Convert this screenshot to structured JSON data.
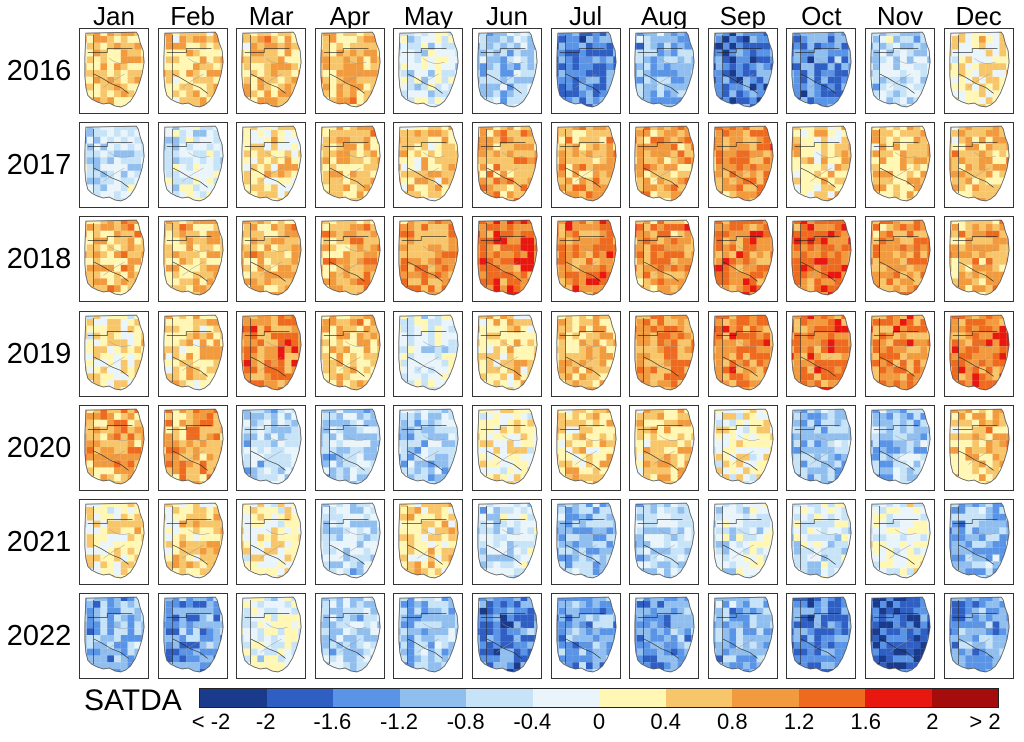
{
  "months": [
    "Jan",
    "Feb",
    "Mar",
    "Apr",
    "May",
    "Jun",
    "Jul",
    "Aug",
    "Sep",
    "Oct",
    "Nov",
    "Dec"
  ],
  "years": [
    "2016",
    "2017",
    "2018",
    "2019",
    "2020",
    "2021",
    "2022"
  ],
  "colorbar": {
    "title": "SATDA",
    "colors": [
      "#1a3a8c",
      "#2f5fc2",
      "#5a94e6",
      "#8fbeef",
      "#c7e3f7",
      "#eaf5fb",
      "#fff7b3",
      "#f7c66a",
      "#f29a3e",
      "#ee6a1f",
      "#e8170f",
      "#a50d0d"
    ],
    "tick_labels": [
      "< -2",
      "-2",
      "-1.6",
      "-1.2",
      "-0.8",
      "-0.4",
      "0",
      "0.4",
      "0.8",
      "1.2",
      "1.6",
      "2",
      "> 2"
    ]
  },
  "chart_data": {
    "type": "heatmap",
    "title": "SATDA",
    "xlabel": "",
    "ylabel": "",
    "categories": [
      "Jan",
      "Feb",
      "Mar",
      "Apr",
      "May",
      "Jun",
      "Jul",
      "Aug",
      "Sep",
      "Oct",
      "Nov",
      "Dec"
    ],
    "series": [
      {
        "name": "2016",
        "values": [
          0.6,
          0.5,
          0.6,
          0.7,
          -0.3,
          -0.8,
          -1.4,
          -1.0,
          -1.6,
          -1.4,
          -0.6,
          0.2
        ]
      },
      {
        "name": "2017",
        "values": [
          -0.5,
          -0.4,
          0.3,
          0.6,
          0.5,
          0.8,
          0.8,
          0.8,
          1.0,
          0.4,
          0.6,
          0.7
        ]
      },
      {
        "name": "2018",
        "values": [
          0.7,
          0.6,
          0.7,
          0.8,
          1.0,
          1.3,
          1.1,
          1.0,
          1.2,
          1.3,
          1.0,
          0.8
        ]
      },
      {
        "name": "2019",
        "values": [
          0.2,
          0.5,
          1.1,
          0.6,
          -0.3,
          0.4,
          0.6,
          1.0,
          1.1,
          1.2,
          1.1,
          1.2
        ]
      },
      {
        "name": "2020",
        "values": [
          0.8,
          0.9,
          -0.6,
          -0.7,
          -0.8,
          0.1,
          0.4,
          0.5,
          0.1,
          -0.9,
          -0.8,
          0.6
        ]
      },
      {
        "name": "2021",
        "values": [
          0.2,
          0.4,
          0.1,
          -0.6,
          0.4,
          -0.5,
          -0.9,
          -0.6,
          -0.3,
          -0.4,
          -0.1,
          -1.0
        ]
      },
      {
        "name": "2022",
        "values": [
          -1.0,
          -1.2,
          -0.2,
          -0.7,
          -0.9,
          -1.5,
          -1.1,
          -1.2,
          -1.0,
          -1.5,
          -1.8,
          -1.2
        ]
      }
    ],
    "value_range": [
      -2,
      2
    ],
    "legend": "bottom"
  }
}
